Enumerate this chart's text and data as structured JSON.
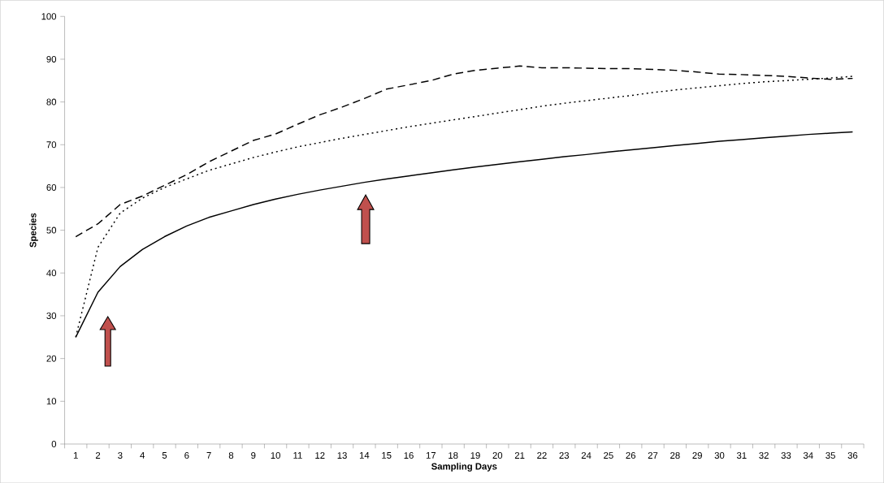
{
  "chart_data": {
    "type": "line",
    "xlabel": "Sampling Days",
    "ylabel": "Species",
    "categories": [
      "1",
      "2",
      "3",
      "4",
      "5",
      "6",
      "7",
      "8",
      "9",
      "10",
      "11",
      "12",
      "13",
      "14",
      "15",
      "16",
      "17",
      "18",
      "19",
      "20",
      "21",
      "22",
      "23",
      "24",
      "25",
      "26",
      "27",
      "28",
      "29",
      "30",
      "31",
      "32",
      "33",
      "34",
      "35",
      "36"
    ],
    "series": [
      {
        "color": "#000000",
        "line_style": "solid",
        "values": [
          25,
          35.5,
          41.5,
          45.5,
          48.5,
          51,
          53,
          54.5,
          56,
          57.3,
          58.4,
          59.4,
          60.3,
          61.2,
          62,
          62.7,
          63.4,
          64.1,
          64.8,
          65.4,
          66,
          66.6,
          67.2,
          67.7,
          68.3,
          68.8,
          69.3,
          69.8,
          70.3,
          70.8,
          71.2,
          71.6,
          72,
          72.4,
          72.7,
          73
        ]
      },
      {
        "color": "#000000",
        "line_style": "dotted",
        "values": [
          25,
          46,
          54,
          57.5,
          60,
          62,
          64,
          65.5,
          67,
          68.3,
          69.5,
          70.5,
          71.5,
          72.4,
          73.3,
          74.2,
          75,
          75.8,
          76.6,
          77.4,
          78.2,
          79,
          79.7,
          80.3,
          80.9,
          81.5,
          82.2,
          82.8,
          83.3,
          83.8,
          84.3,
          84.7,
          85,
          85.3,
          85.6,
          86
        ]
      },
      {
        "color": "#000000",
        "line_style": "dashed",
        "values": [
          48.5,
          51.5,
          56,
          58,
          60.5,
          63,
          66,
          68.5,
          71,
          72.5,
          74.8,
          77,
          78.8,
          80.8,
          83,
          84,
          85,
          86.5,
          87.4,
          87.9,
          88.4,
          88,
          88,
          87.9,
          87.8,
          87.8,
          87.6,
          87.4,
          87,
          86.5,
          86.4,
          86.2,
          86,
          85.6,
          85.3,
          85.5
        ]
      }
    ],
    "ylim": [
      0,
      100
    ],
    "yticks": [
      0,
      10,
      20,
      30,
      40,
      50,
      60,
      70,
      80,
      90,
      100
    ],
    "grid": false,
    "marker": "none"
  }
}
